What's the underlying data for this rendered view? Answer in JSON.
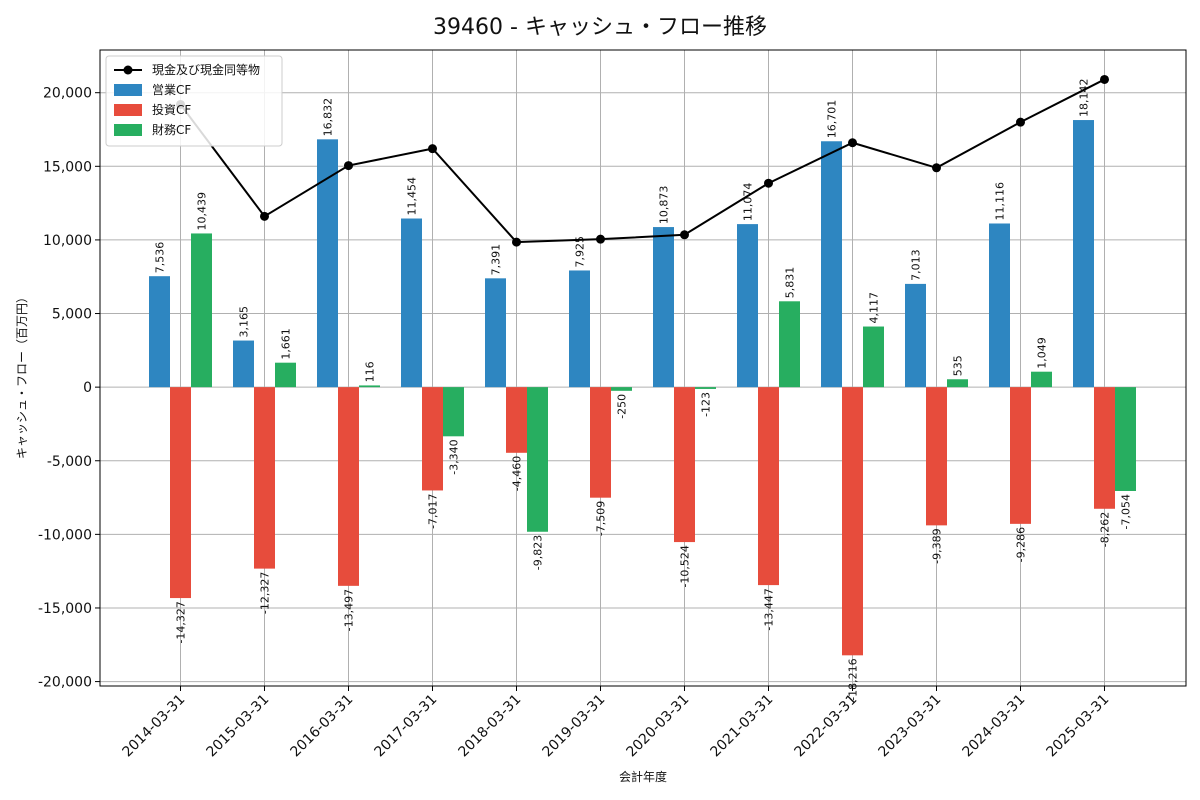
{
  "chart_data": {
    "type": "bar",
    "title": "39460 - キャッシュ・フロー推移",
    "xlabel": "会計年度",
    "ylabel": "キャッシュ・フロー（百万円）",
    "ylim": [
      -20300,
      22900
    ],
    "yticks": [
      -20000,
      -15000,
      -10000,
      -5000,
      0,
      5000,
      10000,
      15000,
      20000
    ],
    "ytick_labels": [
      "-20,000",
      "-15,000",
      "-10,000",
      "-5,000",
      "0",
      "5,000",
      "10,000",
      "15,000",
      "20,000"
    ],
    "grid": true,
    "legend_position": "top-left",
    "categories": [
      "2014-03-31",
      "2015-03-31",
      "2016-03-31",
      "2017-03-31",
      "2018-03-31",
      "2019-03-31",
      "2020-03-31",
      "2021-03-31",
      "2022-03-31",
      "2023-03-31",
      "2024-03-31",
      "2025-03-31"
    ],
    "series": [
      {
        "name": "営業CF",
        "type": "bar",
        "color": "#2e86c1",
        "values": [
          7536,
          3165,
          16832,
          11454,
          7391,
          7925,
          10873,
          11074,
          16701,
          7013,
          11116,
          18142
        ],
        "labels": [
          "7,536",
          "3,165",
          "16,832",
          "11,454",
          "7,391",
          "7,925",
          "10,873",
          "11,074",
          "16,701",
          "7,013",
          "11,116",
          "18,142"
        ]
      },
      {
        "name": "投資CF",
        "type": "bar",
        "color": "#e74c3c",
        "values": [
          -14327,
          -12327,
          -13497,
          -7017,
          -4460,
          -7509,
          -10524,
          -13447,
          -18216,
          -9389,
          -9286,
          -8262
        ],
        "labels": [
          "-14,327",
          "-12,327",
          "-13,497",
          "-7,017",
          "-4,460",
          "-7,509",
          "-10,524",
          "-13,447",
          "-18,216",
          "-9,389",
          "-9,286",
          "-8,262"
        ]
      },
      {
        "name": "財務CF",
        "type": "bar",
        "color": "#27ae60",
        "values": [
          10439,
          1661,
          116,
          -3340,
          -9823,
          -250,
          -123,
          5831,
          4117,
          535,
          1049,
          -7054
        ],
        "labels": [
          "10,439",
          "1,661",
          "116",
          "-3,340",
          "-9,823",
          "-250",
          "-123",
          "5,831",
          "4,117",
          "535",
          "1,049",
          "-7,054"
        ]
      },
      {
        "name": "現金及び現金同等物",
        "type": "line",
        "color": "#000000",
        "values": [
          19200,
          11600,
          15050,
          16200,
          9850,
          10050,
          10350,
          13850,
          16600,
          14900,
          18000,
          20900
        ]
      }
    ]
  }
}
